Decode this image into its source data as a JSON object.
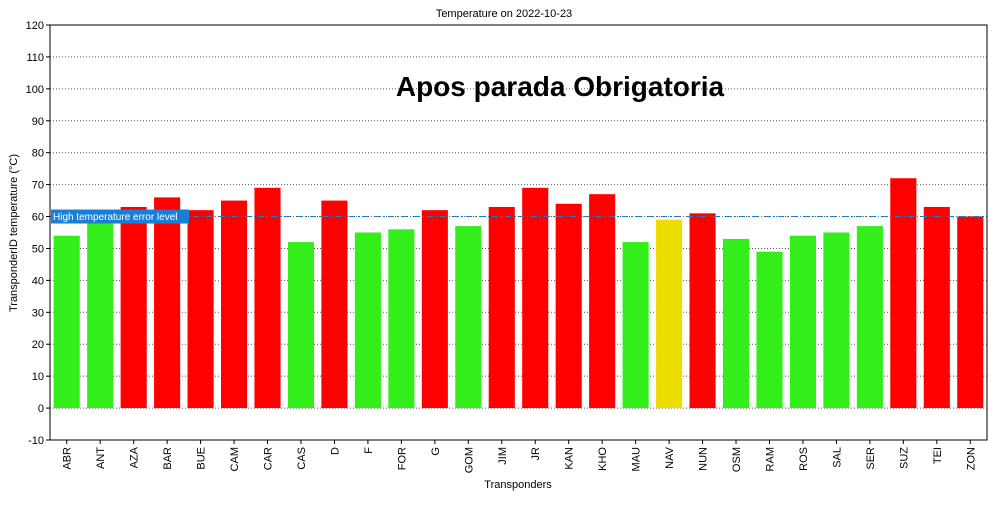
{
  "chart_data": {
    "type": "bar",
    "title": "Temperature on 2022-10-23",
    "xlabel": "Transponders",
    "ylabel": "TransponderID temperature (°C)",
    "annotation": "Apos parada Obrigatoria",
    "ylim": [
      -10,
      120
    ],
    "yticks": [
      "-10",
      "0",
      "10",
      "20",
      "30",
      "40",
      "50",
      "60",
      "70",
      "80",
      "90",
      "100",
      "110",
      "120"
    ],
    "grid": true,
    "categories": [
      "ABR",
      "ANT",
      "AZA",
      "BAR",
      "BUE",
      "CAM",
      "CAR",
      "CAS",
      "D",
      "F",
      "FOR",
      "G",
      "GOM",
      "JIM",
      "JR",
      "KAN",
      "KHO",
      "MAU",
      "NAV",
      "NUN",
      "OSM",
      "RAM",
      "ROS",
      "SAL",
      "SER",
      "SUZ",
      "TEI",
      "ZON"
    ],
    "values": [
      54,
      58,
      63,
      66,
      62,
      65,
      69,
      52,
      65,
      55,
      56,
      62,
      57,
      63,
      69,
      64,
      67,
      52,
      59,
      61,
      53,
      49,
      54,
      55,
      57,
      72,
      63,
      60
    ],
    "bar_status": [
      "green",
      "green",
      "red",
      "red",
      "red",
      "red",
      "red",
      "green",
      "red",
      "green",
      "green",
      "red",
      "green",
      "red",
      "red",
      "red",
      "red",
      "green",
      "yellow",
      "red",
      "green",
      "green",
      "green",
      "green",
      "green",
      "red",
      "red",
      "red"
    ],
    "colors": {
      "green": "#33ee1a",
      "red": "#ff0000",
      "yellow": "#eedd00",
      "threshold": "#1a7fd4"
    },
    "threshold": {
      "value": 60,
      "label": "High temperature error level"
    }
  }
}
